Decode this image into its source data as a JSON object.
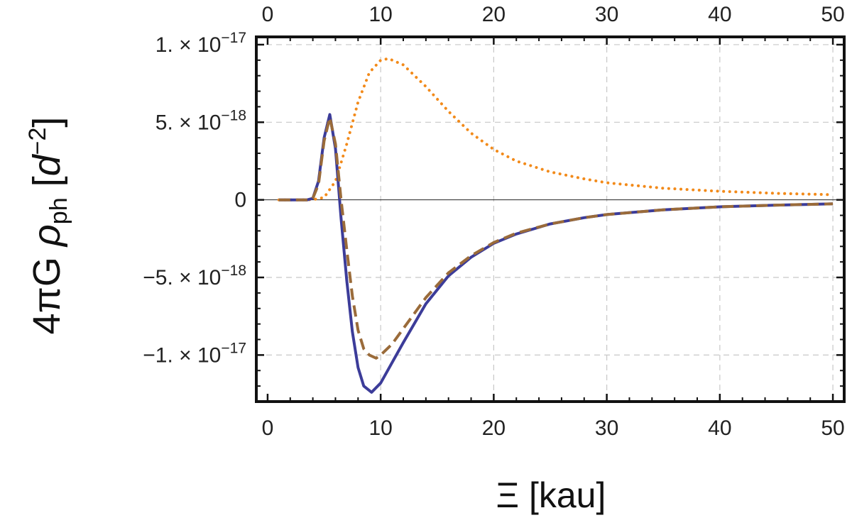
{
  "chart_data": {
    "type": "line",
    "xlabel": "Ξ [kau]",
    "ylabel": {
      "prefix": "4πG ",
      "symbol": "ρ",
      "subscript": "ph",
      "unit_open": " [",
      "unit_var": "d",
      "unit_exp": "−2",
      "unit_close": "]"
    },
    "xlim": [
      -1,
      51
    ],
    "ylim": [
      -1.3e-17,
      1.05e-17
    ],
    "grid": true,
    "grid_style": "dashed",
    "x_ticks": [
      {
        "value": 0,
        "label": "0"
      },
      {
        "value": 10,
        "label": "10"
      },
      {
        "value": 20,
        "label": "20"
      },
      {
        "value": 30,
        "label": "30"
      },
      {
        "value": 40,
        "label": "40"
      },
      {
        "value": 50,
        "label": "50"
      }
    ],
    "y_ticks": [
      {
        "value": 1e-17,
        "mantissa": "1.",
        "exponent": "−17",
        "plain": ""
      },
      {
        "value": 5e-18,
        "mantissa": "5.",
        "exponent": "−18",
        "plain": ""
      },
      {
        "value": 0,
        "mantissa": "",
        "exponent": "",
        "plain": "0"
      },
      {
        "value": -5e-18,
        "mantissa": "−5.",
        "exponent": "−18",
        "plain": ""
      },
      {
        "value": -1e-17,
        "mantissa": "−1.",
        "exponent": "−17",
        "plain": ""
      }
    ],
    "tick_multiplier": "×",
    "tick_base": "10",
    "series": [
      {
        "style": "dotted",
        "color": "#f28a1a",
        "x": [
          1,
          3,
          4,
          5,
          6,
          7,
          8,
          9,
          10,
          10.7,
          12,
          14,
          16,
          18,
          20,
          22,
          25,
          28,
          30,
          35,
          40,
          45,
          50
        ],
        "y": [
          0,
          0,
          1e-20,
          1.5e-19,
          1.2e-18,
          3.6e-18,
          6.3e-18,
          8.2e-18,
          9e-18,
          9.1e-18,
          8.7e-18,
          7.3e-18,
          5.7e-18,
          4.3e-18,
          3.25e-18,
          2.5e-18,
          1.8e-18,
          1.35e-18,
          1.1e-18,
          7.5e-19,
          5.5e-19,
          4.2e-19,
          3.3e-19
        ]
      },
      {
        "style": "solid",
        "color": "#3c3c99",
        "x": [
          1,
          3.5,
          4,
          4.5,
          5,
          5.5,
          6,
          6.5,
          7,
          7.5,
          8,
          8.5,
          9.2,
          10,
          11,
          12,
          14,
          16,
          18,
          20,
          22,
          25,
          28,
          30,
          35,
          40,
          45,
          50
        ],
        "y": [
          0,
          0,
          1e-19,
          1.2e-18,
          4e-18,
          5.5e-18,
          3.3e-18,
          -1.2e-18,
          -5.2e-18,
          -8.5e-18,
          -1.08e-17,
          -1.2e-17,
          -1.24e-17,
          -1.18e-17,
          -1.05e-17,
          -9.2e-18,
          -6.7e-18,
          -4.9e-18,
          -3.7e-18,
          -2.8e-18,
          -2.2e-18,
          -1.55e-18,
          -1.15e-18,
          -9.5e-19,
          -6.4e-19,
          -4.5e-19,
          -3.4e-19,
          -2.6e-19
        ]
      },
      {
        "style": "dashed",
        "color": "#9a6b3a",
        "x": [
          1,
          3.5,
          4,
          4.5,
          5,
          5.5,
          6,
          6.5,
          7,
          7.5,
          8,
          8.5,
          9,
          9.6,
          10,
          11,
          12,
          14,
          16,
          18,
          20,
          22,
          25,
          28,
          30,
          35,
          40,
          45,
          50
        ],
        "y": [
          0,
          0,
          1e-19,
          1e-18,
          3.8e-18,
          5.3e-18,
          3.6e-18,
          0,
          -3.2e-18,
          -6.2e-18,
          -8.4e-18,
          -9.6e-18,
          -1e-17,
          -1.02e-17,
          -1e-17,
          -9.3e-18,
          -8.3e-18,
          -6.3e-18,
          -4.7e-18,
          -3.6e-18,
          -2.75e-18,
          -2.15e-18,
          -1.55e-18,
          -1.15e-18,
          -9.5e-19,
          -6.4e-19,
          -4.5e-19,
          -3.4e-19,
          -2.6e-19
        ]
      }
    ]
  }
}
